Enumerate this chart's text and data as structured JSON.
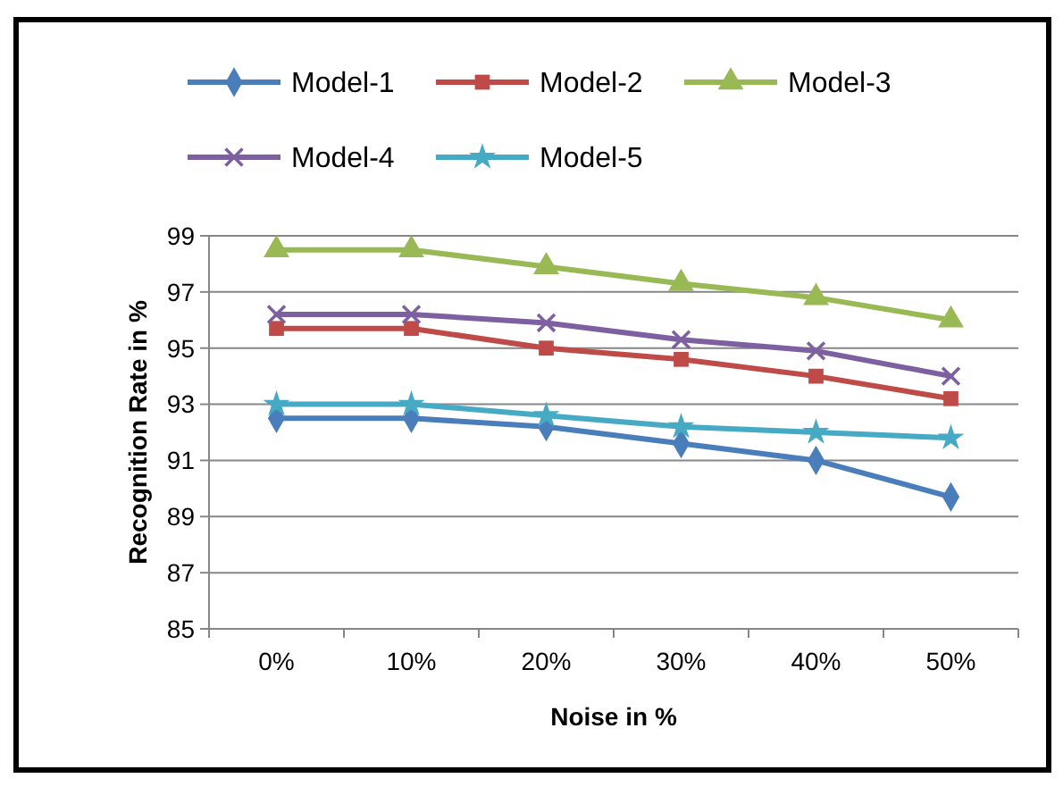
{
  "chart_data": {
    "type": "line",
    "xlabel": "Noise in %",
    "ylabel": "Recognition Rate in %",
    "categories": [
      "0%",
      "10%",
      "20%",
      "30%",
      "40%",
      "50%"
    ],
    "series": [
      {
        "name": "Model-1",
        "color": "#4a7ebb",
        "marker": "diamond",
        "values": [
          92.5,
          92.5,
          92.2,
          91.6,
          91.0,
          89.7
        ]
      },
      {
        "name": "Model-2",
        "color": "#be4b48",
        "marker": "square",
        "values": [
          95.7,
          95.7,
          95.0,
          94.6,
          94.0,
          93.2
        ]
      },
      {
        "name": "Model-3",
        "color": "#98b954",
        "marker": "triangle",
        "values": [
          98.5,
          98.5,
          97.9,
          97.3,
          96.8,
          96.0
        ]
      },
      {
        "name": "Model-4",
        "color": "#7d60a0",
        "marker": "cross",
        "values": [
          96.2,
          96.2,
          95.9,
          95.3,
          94.9,
          94.0
        ]
      },
      {
        "name": "Model-5",
        "color": "#46aac5",
        "marker": "star",
        "values": [
          93.0,
          93.0,
          92.6,
          92.2,
          92.0,
          91.8
        ]
      }
    ],
    "ylim": [
      85,
      99
    ],
    "yticks": [
      85,
      87,
      89,
      91,
      93,
      95,
      97,
      99
    ],
    "grid": "y",
    "legend": "top",
    "line_style": "solid"
  }
}
